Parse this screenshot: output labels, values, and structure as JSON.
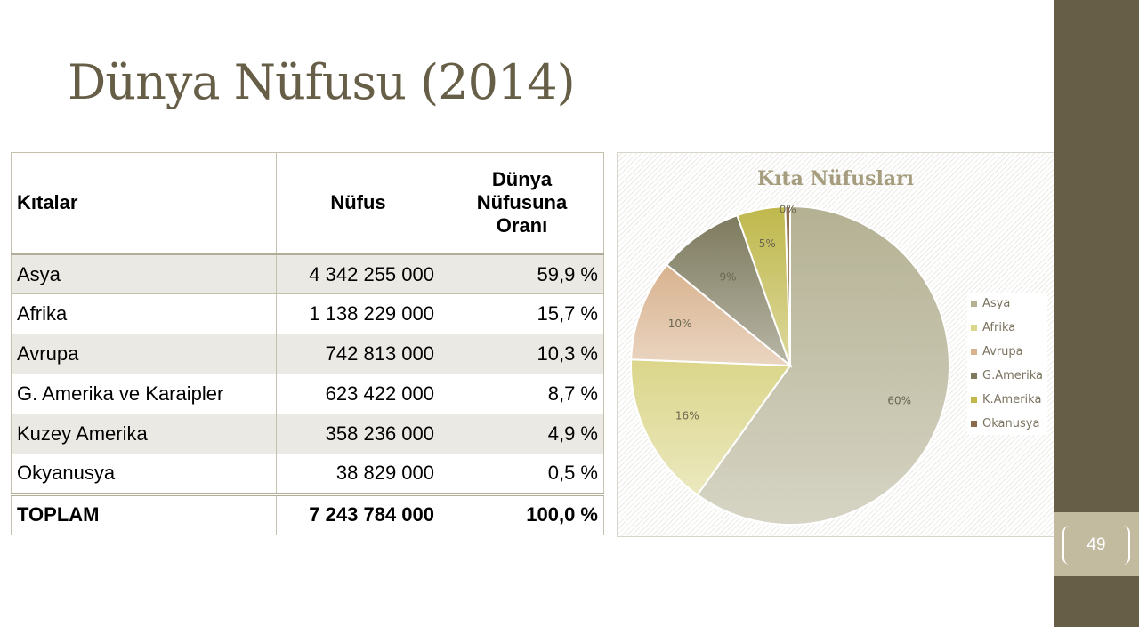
{
  "slide": {
    "title": "Dünya Nüfusu (2014)",
    "slide_number": "49"
  },
  "table": {
    "headers": {
      "continents": "Kıtalar",
      "population": "Nüfus",
      "share_line1": "Dünya",
      "share_line2": "Nüfusuna",
      "share_line3": "Oranı"
    },
    "rows": [
      {
        "name": "Asya",
        "population": "4 342 255 000",
        "share": "59,9 %"
      },
      {
        "name": "Afrika",
        "population": "1 138 229 000",
        "share": "15,7 %"
      },
      {
        "name": "Avrupa",
        "population": "742 813 000",
        "share": "10,3 %"
      },
      {
        "name": "G. Amerika ve Karaipler",
        "population": "623 422 000",
        "share": "8,7 %"
      },
      {
        "name": "Kuzey Amerika",
        "population": "358 236 000",
        "share": "4,9 %"
      },
      {
        "name": "Okyanusya",
        "population": "38 829 000",
        "share": "0,5 %"
      }
    ],
    "total": {
      "name": "TOPLAM",
      "population": "7 243 784 000",
      "share": "100,0 %"
    }
  },
  "chart_data": {
    "type": "pie",
    "title": "Kıta Nüfusları",
    "categories": [
      "Asya",
      "Afrika",
      "Avrupa",
      "G.Amerika",
      "K.Amerika",
      "Okanusya"
    ],
    "values": [
      59.9,
      15.7,
      10.3,
      8.7,
      4.9,
      0.5
    ],
    "data_labels": [
      "60%",
      "16%",
      "10%",
      "9%",
      "5%",
      "0%"
    ],
    "colors": [
      "#b4b193",
      "#dbd68a",
      "#d8b28e",
      "#7d7a5e",
      "#bfb84c",
      "#8a6a4a"
    ],
    "legend_position": "right"
  }
}
